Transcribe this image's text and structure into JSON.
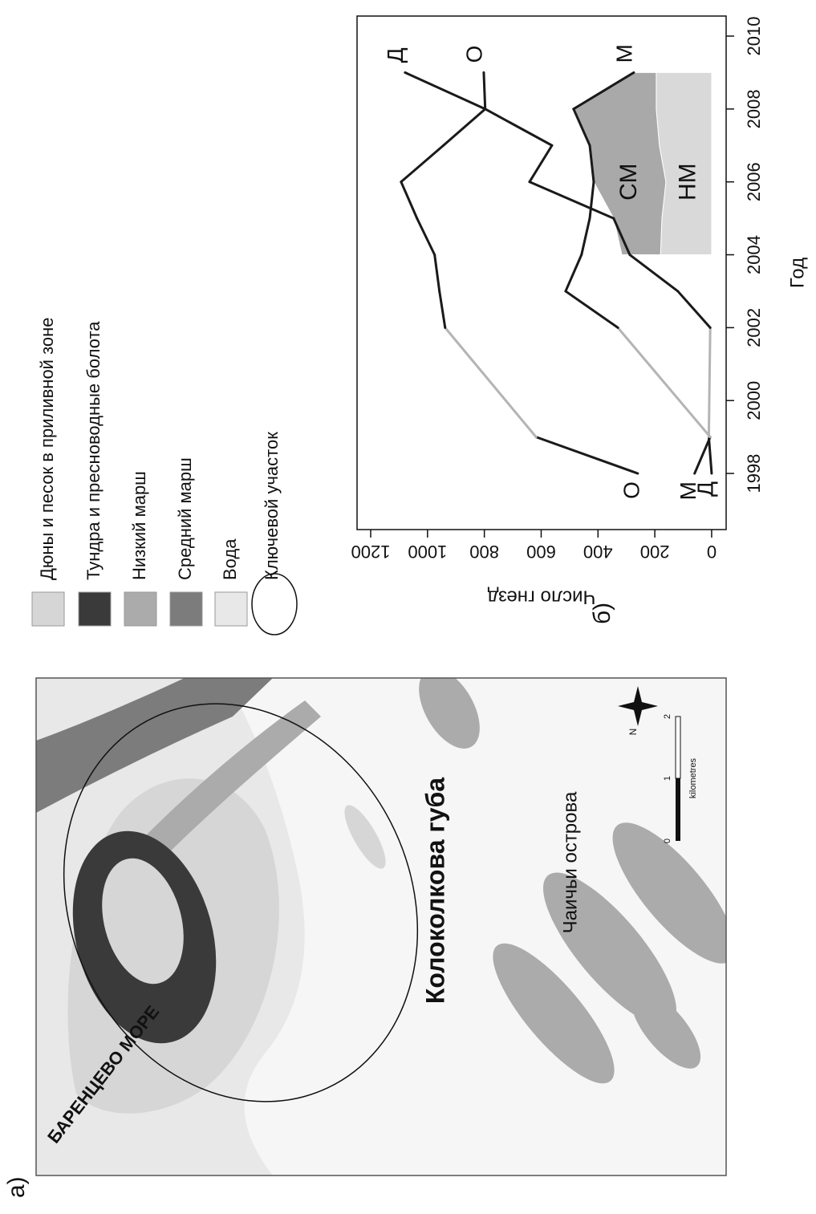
{
  "panel_a": {
    "label": "а)",
    "sea_label": "БАРЕНЦЕВО МОРЕ",
    "bay_label": "Колоколкова губа",
    "islands_label": "Чаичьи острова",
    "north_label": "N",
    "scale_unit": "kilometres",
    "scale_ticks": [
      "0",
      "1",
      "2"
    ]
  },
  "legend": {
    "items": [
      {
        "label": "Дюны и песок в приливной зоне",
        "color": "#d6d6d6"
      },
      {
        "label": "Тундра и пресноводные болота",
        "color": "#3a3a3a"
      },
      {
        "label": "Низкий марш",
        "color": "#ababab"
      },
      {
        "label": "Средний марш",
        "color": "#7c7c7c"
      },
      {
        "label": "Вода",
        "color": "#e8e8e8"
      }
    ],
    "key_area": "Ключевой участок"
  },
  "panel_b": {
    "label": "б)"
  },
  "chart_data": {
    "type": "line",
    "xlabel": "Год",
    "ylabel": "Число гнезд",
    "x": [
      1998,
      1999,
      2002,
      2003,
      2004,
      2005,
      2006,
      2007,
      2008,
      2009
    ],
    "series": [
      {
        "name": "Д",
        "color": "#1a1a1a",
        "values": [
          0,
          10,
          5,
          119,
          288,
          345,
          641,
          562,
          797,
          1079
        ]
      },
      {
        "name": "О",
        "color": "#1a1a1a",
        "values": [
          260,
          618,
          938,
          958,
          975,
          1037,
          1093,
          944,
          797,
          802
        ]
      },
      {
        "name": "М",
        "color": "#1a1a1a",
        "values": [
          60,
          5,
          330,
          514,
          458,
          429,
          415,
          429,
          486,
          274
        ]
      }
    ],
    "gap_color": "#b4b4b4",
    "areas": {
      "x": [
        2004,
        2005,
        2006,
        2007,
        2008,
        2009
      ],
      "series": [
        {
          "name": "НМ",
          "color": "#d9d9d9",
          "values": [
            180,
            175,
            161,
            184,
            195,
            195
          ]
        },
        {
          "name": "СМ",
          "color": "#a9a9a9",
          "values": [
            136,
            170,
            254,
            245,
            291,
            79
          ]
        }
      ]
    },
    "xlim": [
      1996.46,
      2010.55
    ],
    "ylim": [
      -51,
      1248
    ],
    "xticks": [
      1998,
      2000,
      2002,
      2004,
      2006,
      2008,
      2010
    ],
    "yticks": [
      0,
      200,
      400,
      600,
      800,
      1000,
      1200
    ]
  }
}
